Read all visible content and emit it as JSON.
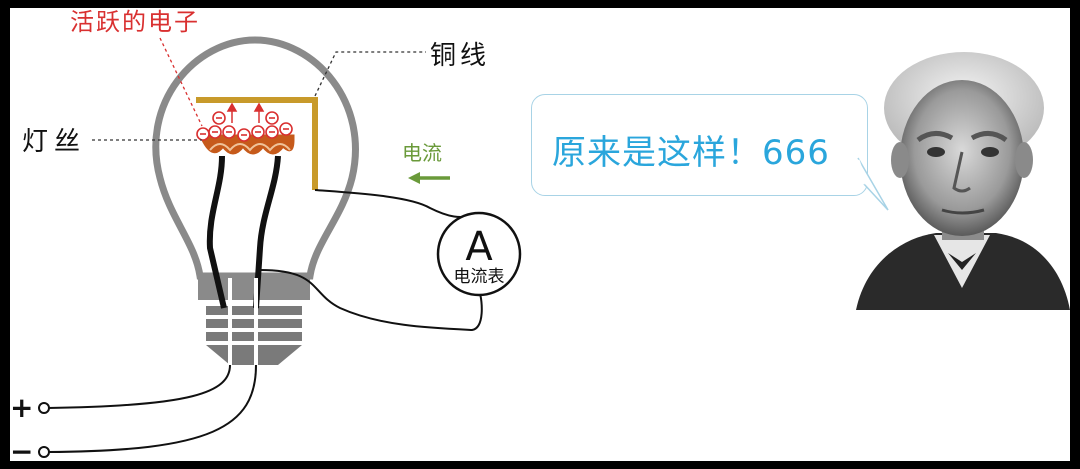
{
  "labels": {
    "active_electrons": "活跃的电子",
    "filament": "灯丝",
    "copper_wire": "铜线",
    "current": "电流",
    "ammeter_symbol": "A",
    "ammeter_name": "电流表",
    "plus": "+",
    "minus": "−",
    "electron_symbol": "⊖"
  },
  "speech_bubble": {
    "text": "原来是这样！666"
  },
  "colors": {
    "bulb_outline": "#8a8a8a",
    "base": "#7a7a7a",
    "filament": "#c65a1b",
    "copper_wire": "#c89a2a",
    "electron": "#d93030",
    "current_arrow": "#6a9a3a",
    "bubble_text": "#2aa6dc",
    "bubble_border": "#a8d3e6"
  },
  "icons": {
    "portrait": "edison-portrait",
    "ammeter": "ammeter-icon"
  }
}
